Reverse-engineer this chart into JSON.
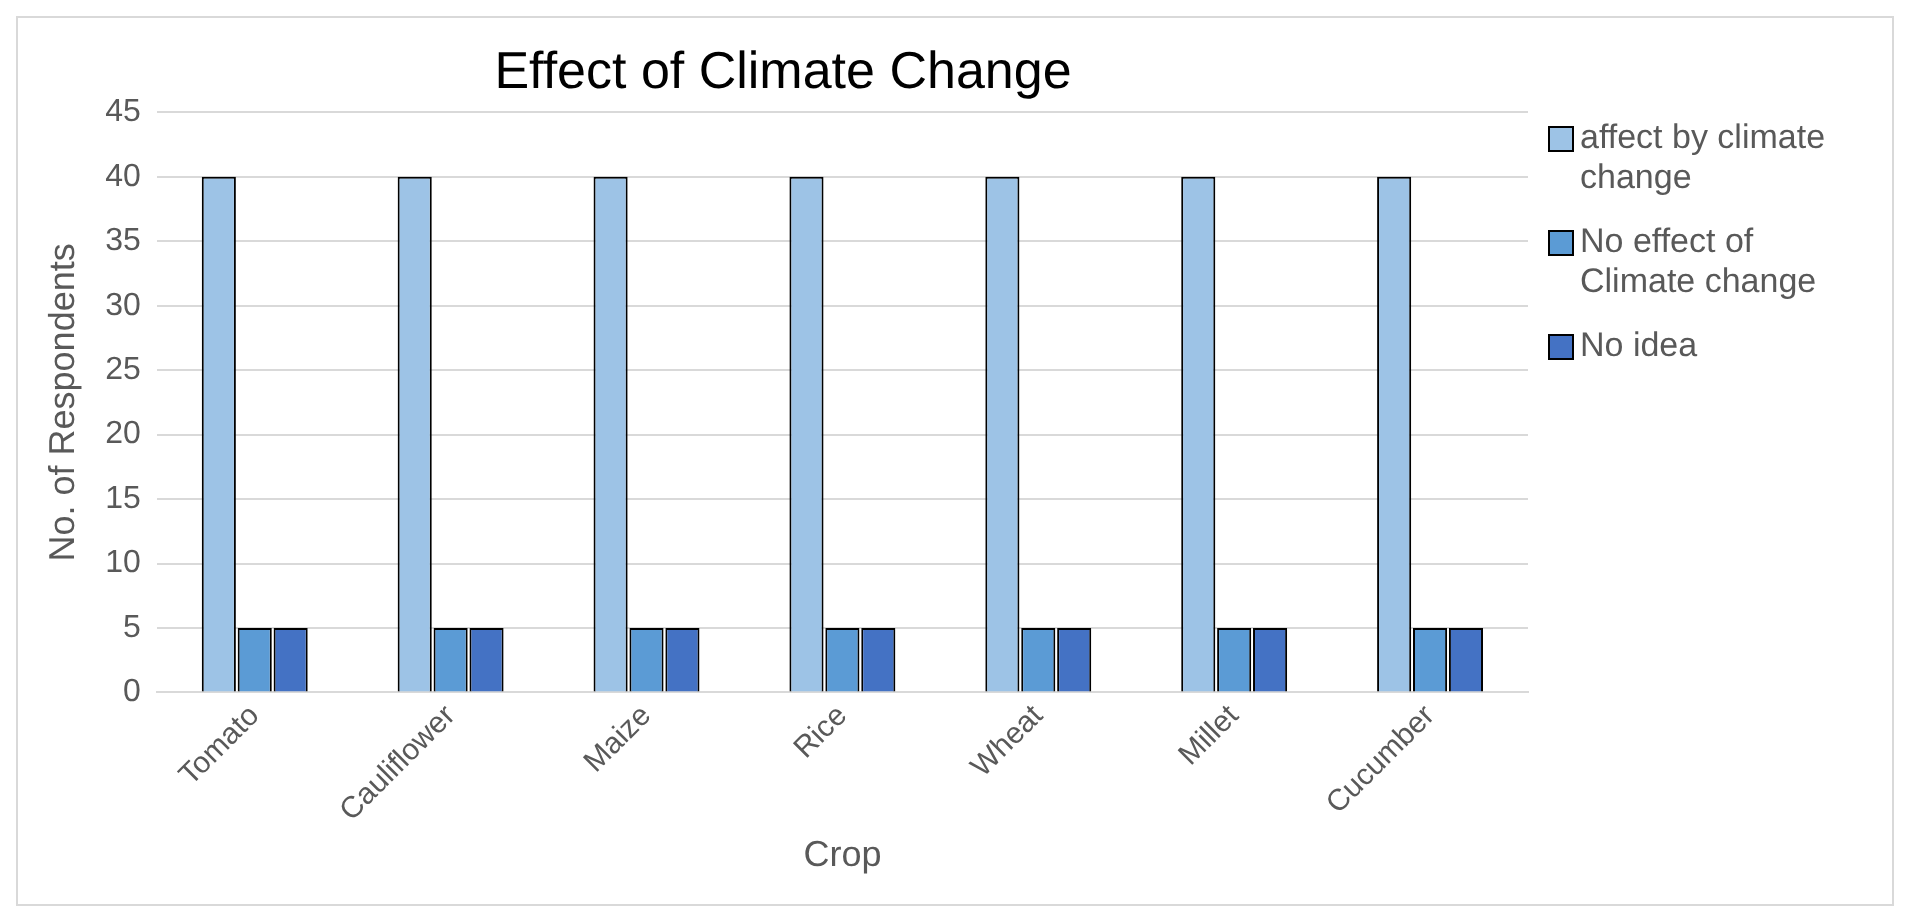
{
  "chart_data": {
    "type": "bar",
    "title": "Effect of Climate Change",
    "xlabel": "Crop",
    "ylabel": "No. of Respondents",
    "categories": [
      "Tomato",
      "Cauliflower",
      "Maize",
      "Rice",
      "Wheat",
      "Millet",
      "Cucumber"
    ],
    "series": [
      {
        "name": "affect by climate change",
        "color": "#9dc3e6",
        "values": [
          40,
          40,
          40,
          40,
          40,
          40,
          40
        ]
      },
      {
        "name": "No effect of Climate change",
        "color": "#5b9bd5",
        "values": [
          5,
          5,
          5,
          5,
          5,
          5,
          5
        ]
      },
      {
        "name": "No idea",
        "color": "#4472c4",
        "values": [
          5,
          5,
          5,
          5,
          5,
          5,
          5
        ]
      }
    ],
    "ylim": [
      0,
      45
    ],
    "yticks": [
      0,
      5,
      10,
      15,
      20,
      25,
      30,
      35,
      40,
      45
    ],
    "grid": "y",
    "legend": "right"
  }
}
